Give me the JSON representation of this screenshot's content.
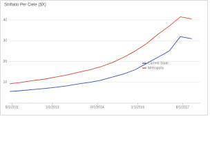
{
  "chart_data": {
    "type": "line",
    "title": "Sinflatio Per Ciele ($X)",
    "x": [
      2011.5,
      2011.9,
      2012.3,
      2012.7,
      2013.1,
      2013.5,
      2013.9,
      2014.3,
      2014.7,
      2015.1,
      2015.5,
      2015.9,
      2016.3,
      2016.7,
      2017.1,
      2017.5,
      2017.9
    ],
    "series": [
      {
        "name": "Current State",
        "color": "#3a4fc4",
        "values": [
          5.6,
          6,
          6.5,
          7,
          7.6,
          8.3,
          9.2,
          10,
          11,
          12.5,
          14,
          16,
          19,
          22,
          25,
          32,
          31
        ]
      },
      {
        "name": "Metropolis",
        "color": "#d9472b",
        "values": [
          9.3,
          10,
          10.8,
          11.5,
          12.5,
          13.5,
          14.8,
          16,
          17.5,
          19.5,
          22,
          25,
          28.5,
          33,
          37,
          41.5,
          40.5
        ]
      }
    ],
    "xlim": [
      2011.45,
      2018.2
    ],
    "xticks": [
      {
        "value": 2011.58,
        "label": "8/1/2011"
      },
      {
        "value": 2013.0,
        "label": "1/1/2013"
      },
      {
        "value": 2014.58,
        "label": "8/1/2014"
      },
      {
        "value": 2016.0,
        "label": "1/1/2016"
      },
      {
        "value": 2017.58,
        "label": "8/1/2017"
      }
    ],
    "ylim": [
      0,
      45
    ],
    "yticks": [
      10,
      20,
      30,
      40
    ],
    "grid": true
  }
}
